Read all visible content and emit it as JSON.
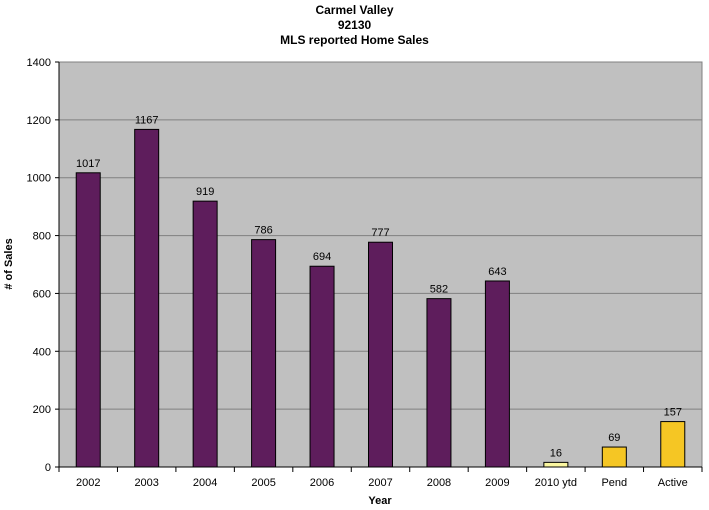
{
  "chart_data": {
    "type": "bar",
    "title": [
      "Carmel Valley",
      "92130",
      "MLS reported Home Sales"
    ],
    "xlabel": "Year",
    "ylabel": "# of Sales",
    "ylim": [
      0,
      1400
    ],
    "yticks": [
      0,
      200,
      400,
      600,
      800,
      1000,
      1200,
      1400
    ],
    "grid": true,
    "categories": [
      "2002",
      "2003",
      "2004",
      "2005",
      "2006",
      "2007",
      "2008",
      "2009",
      "2010 ytd",
      "Pend",
      "Active"
    ],
    "values": [
      1017,
      1167,
      919,
      786,
      694,
      777,
      582,
      643,
      16,
      69,
      157
    ],
    "bar_colors": [
      "#5e1d5c",
      "#5e1d5c",
      "#5e1d5c",
      "#5e1d5c",
      "#5e1d5c",
      "#5e1d5c",
      "#5e1d5c",
      "#5e1d5c",
      "#fbf7a0",
      "#f5c624",
      "#f5c624"
    ],
    "plot_background": "#c0c0c0"
  }
}
